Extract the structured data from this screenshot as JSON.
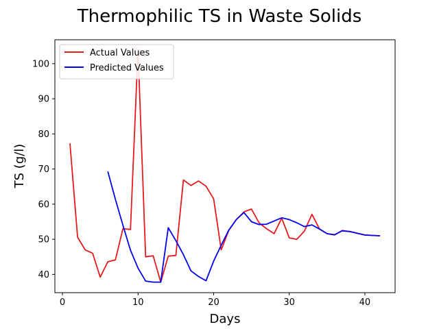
{
  "chart_data": {
    "type": "line",
    "title": "Thermophilic TS in Waste Solids",
    "xlabel": "Days",
    "ylabel": "TS (g/l)",
    "xlim": [
      -1,
      44
    ],
    "ylim": [
      34.8,
      106.8
    ],
    "xticks": [
      0,
      10,
      20,
      30,
      40
    ],
    "yticks": [
      40,
      50,
      60,
      70,
      80,
      90,
      100
    ],
    "grid": false,
    "legend_position": "top-left",
    "series": [
      {
        "name": "Actual Values",
        "color": "#e41a1c",
        "x": [
          1,
          2,
          3,
          4,
          5,
          6,
          7,
          8,
          9,
          10,
          11,
          12,
          13,
          14,
          15,
          16,
          17,
          18,
          19,
          20,
          21,
          22,
          23,
          24,
          25,
          26,
          27,
          28,
          29,
          30,
          31,
          32,
          33,
          34,
          35,
          36,
          37,
          38,
          39,
          40,
          41,
          42
        ],
        "y": [
          77.3,
          50.6,
          47.0,
          46.0,
          39.2,
          43.6,
          44.1,
          53.0,
          52.8,
          104.0,
          45.0,
          45.3,
          37.8,
          45.2,
          45.4,
          66.9,
          65.3,
          66.6,
          65.1,
          61.5,
          47.0,
          52.5,
          55.6,
          57.8,
          58.6,
          54.7,
          53.0,
          51.6,
          56.0,
          50.4,
          50.0,
          52.3,
          57.1,
          52.9,
          51.6,
          51.2,
          52.5,
          52.2,
          51.7,
          51.2,
          51.1,
          51.0
        ]
      },
      {
        "name": "Predicted Values",
        "color": "#0000ee",
        "x": [
          6,
          7,
          8,
          9,
          10,
          11,
          12,
          13,
          14,
          15,
          16,
          17,
          18,
          19,
          20,
          21,
          22,
          23,
          24,
          25,
          26,
          27,
          28,
          29,
          30,
          31,
          32,
          33,
          34,
          35,
          36,
          37,
          38,
          39,
          40,
          41,
          42
        ],
        "y": [
          69.3,
          61.4,
          54.0,
          46.9,
          41.8,
          38.1,
          37.8,
          37.8,
          53.3,
          49.6,
          45.6,
          41.0,
          39.4,
          38.2,
          43.8,
          48.3,
          52.6,
          55.6,
          57.6,
          55.0,
          54.2,
          54.3,
          55.2,
          56.1,
          55.6,
          54.7,
          53.6,
          54.1,
          52.9,
          51.6,
          51.3,
          52.4,
          52.2,
          51.7,
          51.2,
          51.1,
          51.0
        ]
      }
    ]
  }
}
